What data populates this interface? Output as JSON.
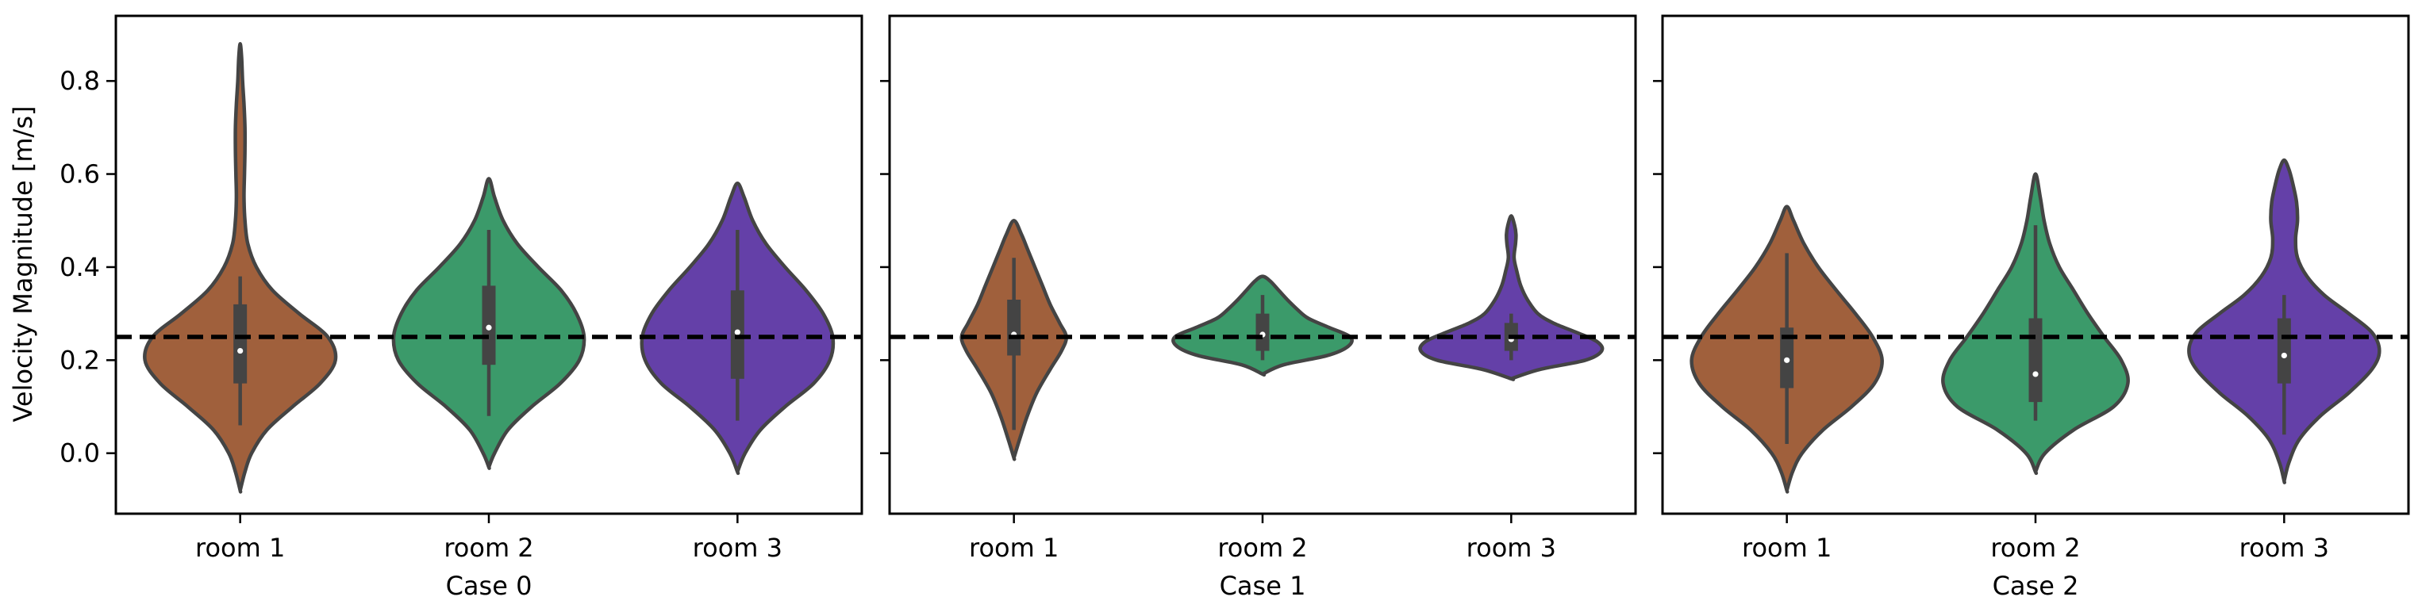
{
  "chart_data": {
    "type": "violin",
    "ylabel": "Velocity Magnitude [m/s]",
    "ylim": [
      -0.13,
      0.94
    ],
    "yticks": [
      0.0,
      0.2,
      0.4,
      0.6,
      0.8
    ],
    "ytick_labels": [
      "0.0",
      "0.2",
      "0.4",
      "0.6",
      "0.8"
    ],
    "reference_line": 0.25,
    "shared_y": true,
    "series_colors": {
      "room 1": "#a0603c",
      "room 2": "#3b9a6a",
      "room 3": "#6440a8"
    },
    "panels": [
      {
        "xlabel": "Case 0",
        "categories": [
          "room 1",
          "room 2",
          "room 3"
        ],
        "violins": [
          {
            "category": "room 1",
            "min": -0.08,
            "max": 0.88,
            "median": 0.22,
            "q1": 0.15,
            "q3": 0.32,
            "whisker_low": 0.06,
            "whisker_high": 0.38,
            "density": [
              [
                -0.08,
                0.0
              ],
              [
                -0.04,
                0.05
              ],
              [
                0.0,
                0.12
              ],
              [
                0.05,
                0.28
              ],
              [
                0.1,
                0.55
              ],
              [
                0.15,
                0.84
              ],
              [
                0.2,
                1.0
              ],
              [
                0.25,
                0.92
              ],
              [
                0.3,
                0.62
              ],
              [
                0.35,
                0.34
              ],
              [
                0.4,
                0.17
              ],
              [
                0.45,
                0.08
              ],
              [
                0.5,
                0.05
              ],
              [
                0.55,
                0.04
              ],
              [
                0.6,
                0.045
              ],
              [
                0.65,
                0.05
              ],
              [
                0.7,
                0.05
              ],
              [
                0.75,
                0.04
              ],
              [
                0.8,
                0.025
              ],
              [
                0.85,
                0.015
              ],
              [
                0.88,
                0.0
              ]
            ]
          },
          {
            "category": "room 2",
            "min": -0.03,
            "max": 0.59,
            "median": 0.27,
            "q1": 0.19,
            "q3": 0.36,
            "whisker_low": 0.08,
            "whisker_high": 0.48,
            "density": [
              [
                -0.03,
                0.0
              ],
              [
                0.0,
                0.06
              ],
              [
                0.05,
                0.2
              ],
              [
                0.1,
                0.45
              ],
              [
                0.15,
                0.75
              ],
              [
                0.2,
                0.95
              ],
              [
                0.25,
                1.0
              ],
              [
                0.3,
                0.92
              ],
              [
                0.35,
                0.76
              ],
              [
                0.4,
                0.52
              ],
              [
                0.45,
                0.3
              ],
              [
                0.5,
                0.15
              ],
              [
                0.55,
                0.06
              ],
              [
                0.59,
                0.0
              ]
            ]
          },
          {
            "category": "room 3",
            "min": -0.04,
            "max": 0.58,
            "median": 0.26,
            "q1": 0.16,
            "q3": 0.35,
            "whisker_low": 0.07,
            "whisker_high": 0.48,
            "density": [
              [
                -0.04,
                0.0
              ],
              [
                0.0,
                0.08
              ],
              [
                0.05,
                0.24
              ],
              [
                0.1,
                0.5
              ],
              [
                0.15,
                0.8
              ],
              [
                0.2,
                0.97
              ],
              [
                0.25,
                1.0
              ],
              [
                0.3,
                0.9
              ],
              [
                0.35,
                0.72
              ],
              [
                0.4,
                0.5
              ],
              [
                0.45,
                0.3
              ],
              [
                0.5,
                0.16
              ],
              [
                0.55,
                0.07
              ],
              [
                0.58,
                0.0
              ]
            ]
          }
        ]
      },
      {
        "xlabel": "Case 1",
        "categories": [
          "room 1",
          "room 2",
          "room 3"
        ],
        "violins": [
          {
            "category": "room 1",
            "min": -0.01,
            "max": 0.5,
            "median": 0.255,
            "q1": 0.21,
            "q3": 0.33,
            "whisker_low": 0.05,
            "whisker_high": 0.42,
            "density": [
              [
                -0.01,
                0.0
              ],
              [
                0.03,
                0.06
              ],
              [
                0.08,
                0.14
              ],
              [
                0.13,
                0.24
              ],
              [
                0.18,
                0.38
              ],
              [
                0.22,
                0.5
              ],
              [
                0.25,
                0.55
              ],
              [
                0.28,
                0.48
              ],
              [
                0.32,
                0.38
              ],
              [
                0.36,
                0.3
              ],
              [
                0.4,
                0.22
              ],
              [
                0.44,
                0.14
              ],
              [
                0.47,
                0.08
              ],
              [
                0.5,
                0.0
              ]
            ]
          },
          {
            "category": "room 2",
            "min": 0.17,
            "max": 0.38,
            "median": 0.255,
            "q1": 0.22,
            "q3": 0.3,
            "whisker_low": 0.2,
            "whisker_high": 0.34,
            "density": [
              [
                0.17,
                0.0
              ],
              [
                0.19,
                0.22
              ],
              [
                0.21,
                0.68
              ],
              [
                0.23,
                0.9
              ],
              [
                0.25,
                0.92
              ],
              [
                0.27,
                0.7
              ],
              [
                0.29,
                0.48
              ],
              [
                0.31,
                0.36
              ],
              [
                0.33,
                0.26
              ],
              [
                0.35,
                0.17
              ],
              [
                0.37,
                0.08
              ],
              [
                0.38,
                0.0
              ]
            ]
          },
          {
            "category": "room 3",
            "min": 0.16,
            "max": 0.51,
            "median": 0.245,
            "q1": 0.22,
            "q3": 0.28,
            "whisker_low": 0.2,
            "whisker_high": 0.3,
            "density": [
              [
                0.16,
                0.0
              ],
              [
                0.18,
                0.3
              ],
              [
                0.2,
                0.78
              ],
              [
                0.22,
                0.95
              ],
              [
                0.24,
                0.9
              ],
              [
                0.26,
                0.68
              ],
              [
                0.28,
                0.44
              ],
              [
                0.3,
                0.28
              ],
              [
                0.33,
                0.17
              ],
              [
                0.36,
                0.1
              ],
              [
                0.39,
                0.06
              ],
              [
                0.42,
                0.03
              ],
              [
                0.45,
                0.045
              ],
              [
                0.47,
                0.05
              ],
              [
                0.49,
                0.035
              ],
              [
                0.51,
                0.0
              ]
            ]
          }
        ]
      },
      {
        "xlabel": "Case 2",
        "categories": [
          "room 1",
          "room 2",
          "room 3"
        ],
        "violins": [
          {
            "category": "room 1",
            "min": -0.08,
            "max": 0.53,
            "median": 0.2,
            "q1": 0.14,
            "q3": 0.27,
            "whisker_low": 0.02,
            "whisker_high": 0.43,
            "density": [
              [
                -0.08,
                0.0
              ],
              [
                -0.04,
                0.06
              ],
              [
                0.0,
                0.16
              ],
              [
                0.05,
                0.38
              ],
              [
                0.1,
                0.68
              ],
              [
                0.15,
                0.92
              ],
              [
                0.2,
                1.0
              ],
              [
                0.25,
                0.9
              ],
              [
                0.3,
                0.72
              ],
              [
                0.35,
                0.52
              ],
              [
                0.4,
                0.33
              ],
              [
                0.45,
                0.18
              ],
              [
                0.5,
                0.07
              ],
              [
                0.53,
                0.0
              ]
            ]
          },
          {
            "category": "room 2",
            "min": -0.04,
            "max": 0.6,
            "median": 0.17,
            "q1": 0.11,
            "q3": 0.29,
            "whisker_low": 0.07,
            "whisker_high": 0.49,
            "density": [
              [
                -0.04,
                0.0
              ],
              [
                0.0,
                0.1
              ],
              [
                0.05,
                0.4
              ],
              [
                0.1,
                0.82
              ],
              [
                0.15,
                0.97
              ],
              [
                0.2,
                0.9
              ],
              [
                0.25,
                0.72
              ],
              [
                0.3,
                0.55
              ],
              [
                0.35,
                0.4
              ],
              [
                0.4,
                0.25
              ],
              [
                0.45,
                0.15
              ],
              [
                0.5,
                0.09
              ],
              [
                0.55,
                0.05
              ],
              [
                0.6,
                0.0
              ]
            ]
          },
          {
            "category": "room 3",
            "min": -0.06,
            "max": 0.63,
            "median": 0.21,
            "q1": 0.15,
            "q3": 0.29,
            "whisker_low": 0.04,
            "whisker_high": 0.34,
            "density": [
              [
                -0.06,
                0.0
              ],
              [
                -0.02,
                0.05
              ],
              [
                0.03,
                0.16
              ],
              [
                0.08,
                0.38
              ],
              [
                0.13,
                0.68
              ],
              [
                0.18,
                0.92
              ],
              [
                0.22,
                1.0
              ],
              [
                0.26,
                0.92
              ],
              [
                0.3,
                0.68
              ],
              [
                0.34,
                0.42
              ],
              [
                0.38,
                0.24
              ],
              [
                0.42,
                0.14
              ],
              [
                0.46,
                0.12
              ],
              [
                0.5,
                0.14
              ],
              [
                0.54,
                0.13
              ],
              [
                0.58,
                0.09
              ],
              [
                0.61,
                0.05
              ],
              [
                0.63,
                0.0
              ]
            ]
          }
        ]
      }
    ]
  }
}
